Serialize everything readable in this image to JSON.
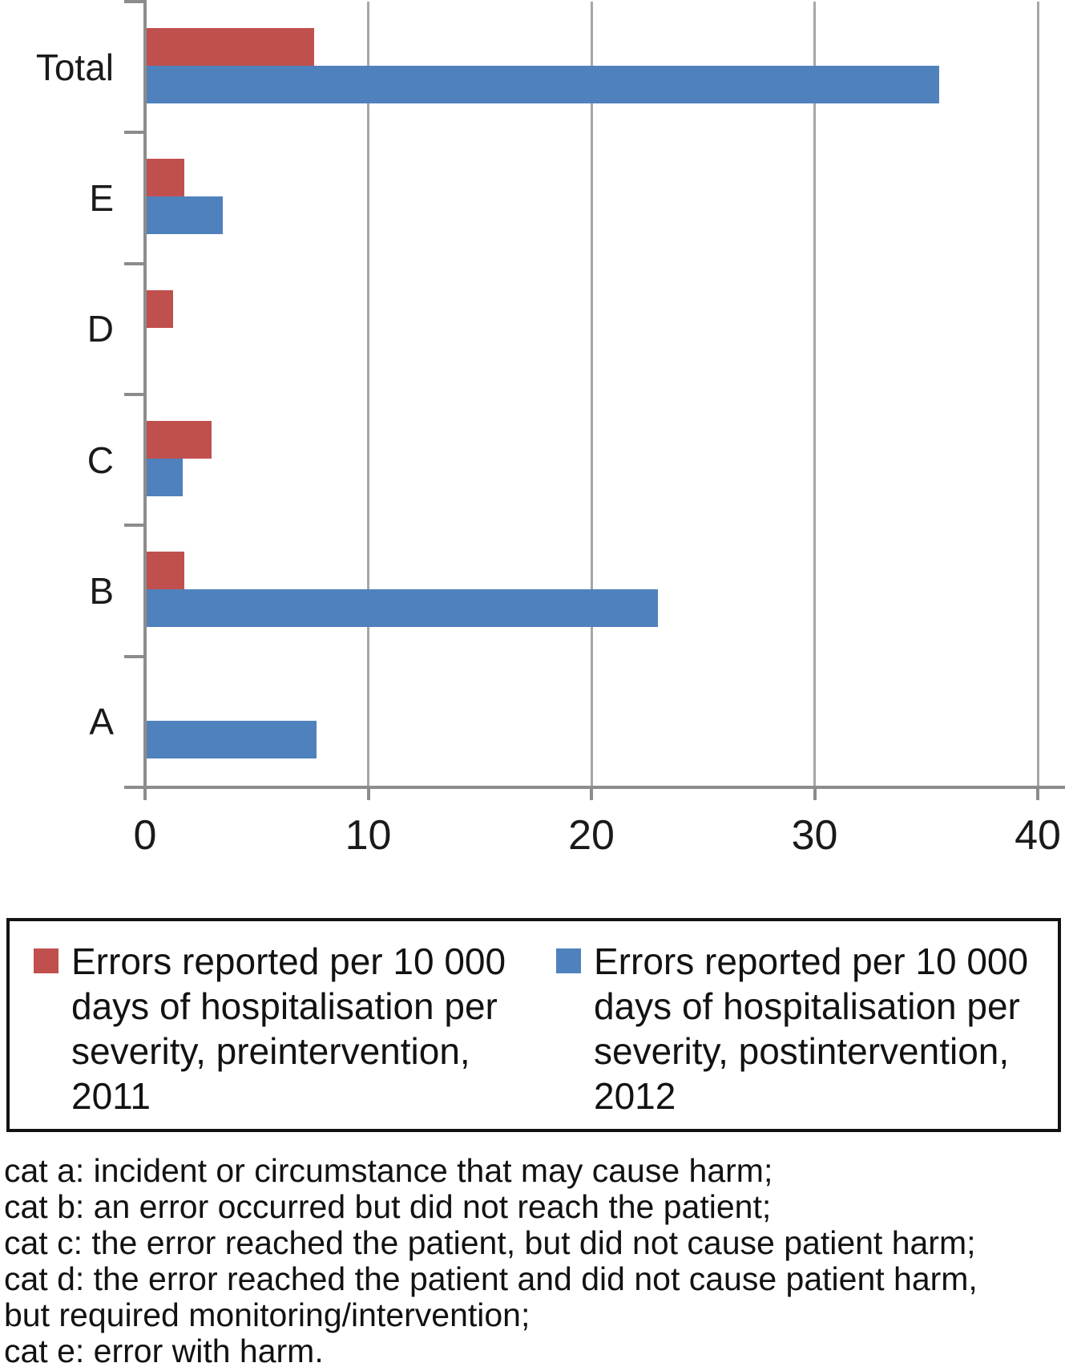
{
  "chart_data": {
    "type": "bar",
    "orientation": "horizontal",
    "title": "",
    "xlabel": "",
    "ylabel": "",
    "categories": [
      "Total",
      "E",
      "D",
      "C",
      "B",
      "A"
    ],
    "series": [
      {
        "key": "preintervention-2011",
        "name": "Errors reported per 10 000 days of hospitalisation per severity, preintervention, 2011",
        "color": "#C0504D",
        "values": [
          7.5,
          1.7,
          1.2,
          2.9,
          1.7,
          0
        ]
      },
      {
        "key": "postintervention-2012",
        "name": "Errors reported per 10 000 days of hospitalisation per severity, postintervention, 2012",
        "color": "#4F81BD",
        "values": [
          35.5,
          3.4,
          0,
          1.6,
          22.9,
          7.6
        ]
      }
    ],
    "x_axis": {
      "range": [
        0,
        40
      ],
      "ticks": [
        0,
        10,
        20,
        30,
        40
      ],
      "gridlines": true
    },
    "legend_position": "bottom",
    "grid_color": "#a6a6a6",
    "axis_color": "#8c8c8c"
  },
  "legend": {
    "entries": [
      {
        "label": "Errors reported per 10 000\ndays of hospitalisation per\nseverity, preintervention,\n2011",
        "color": "#C0504D"
      },
      {
        "label": "Errors reported per 10 000\ndays of hospitalisation per\nseverity, postintervention,\n2012",
        "color": "#4F81BD"
      }
    ]
  },
  "footnotes": [
    "cat a: incident or circumstance that may cause harm;",
    "cat b: an error occurred but did not reach the patient;",
    "cat c: the error reached the patient, but did not cause patient harm;",
    "cat d: the error reached the patient and did not cause patient harm,\nbut required monitoring/intervention;",
    "cat e: error with harm."
  ]
}
